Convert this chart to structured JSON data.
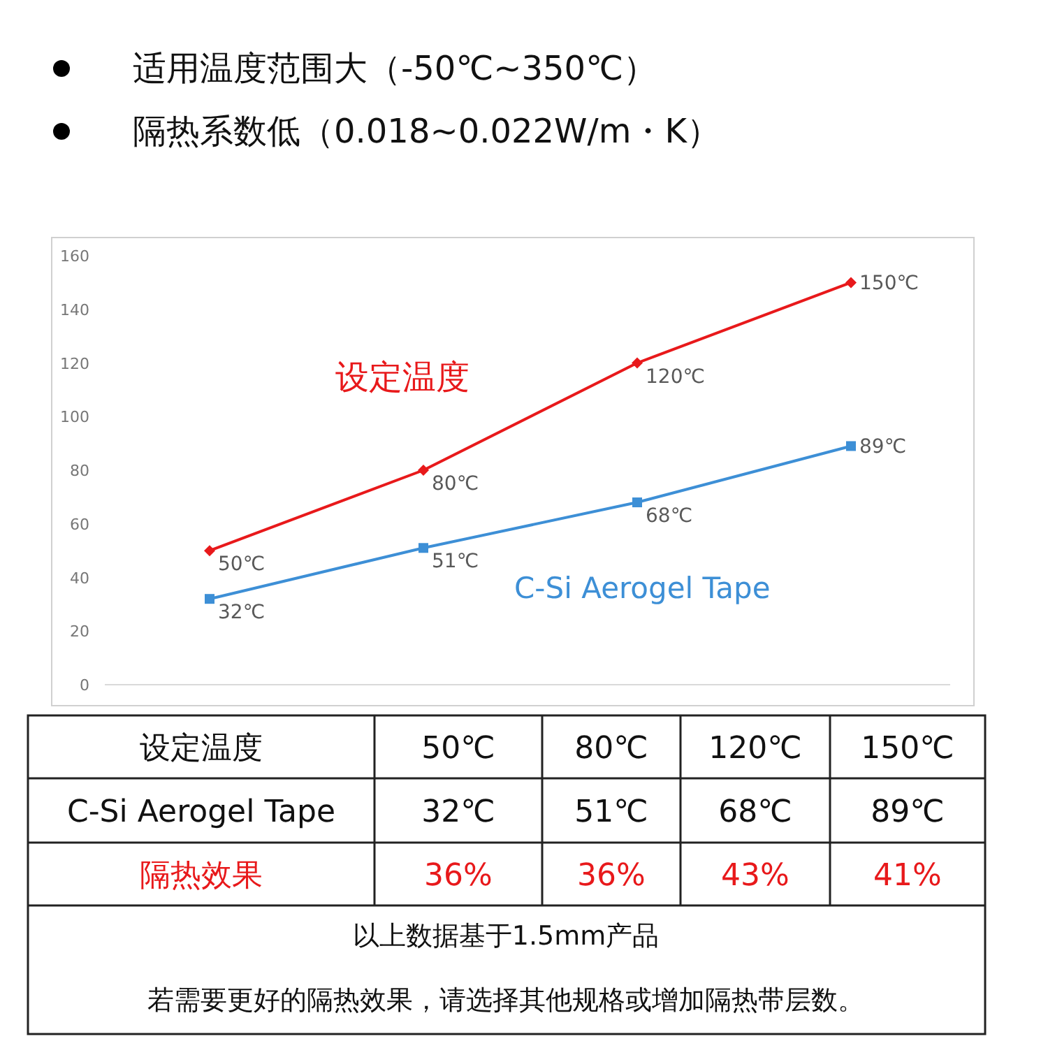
{
  "chart_data": {
    "type": "line",
    "categories": [
      null,
      null,
      null,
      null
    ],
    "series": [
      {
        "name": "设定温度",
        "color": "#e8191b",
        "marker": "diamond",
        "values": [
          50,
          80,
          120,
          150
        ],
        "value_labels": [
          "50℃",
          "80℃",
          "120℃",
          "150℃"
        ]
      },
      {
        "name": "C-Si Aerogel Tape",
        "color": "#3d8fd6",
        "marker": "square",
        "values": [
          32,
          51,
          68,
          89
        ],
        "value_labels": [
          "32℃",
          "51℃",
          "68℃",
          "89℃"
        ]
      }
    ],
    "ylim": [
      0,
      160
    ],
    "yticks": [
      0,
      20,
      40,
      60,
      80,
      100,
      120,
      140,
      160
    ],
    "annotations": [
      "适用温度范围大（-50℃~350℃）",
      "隔热系数低（0.018~0.022W/m・K）",
      "隔热效果",
      "36%",
      "36%",
      "43%",
      "41%",
      "以上数据基于1.5mm产品",
      "若需要更好的隔热效果，请选择其他规格或增加隔热带层数。"
    ]
  }
}
